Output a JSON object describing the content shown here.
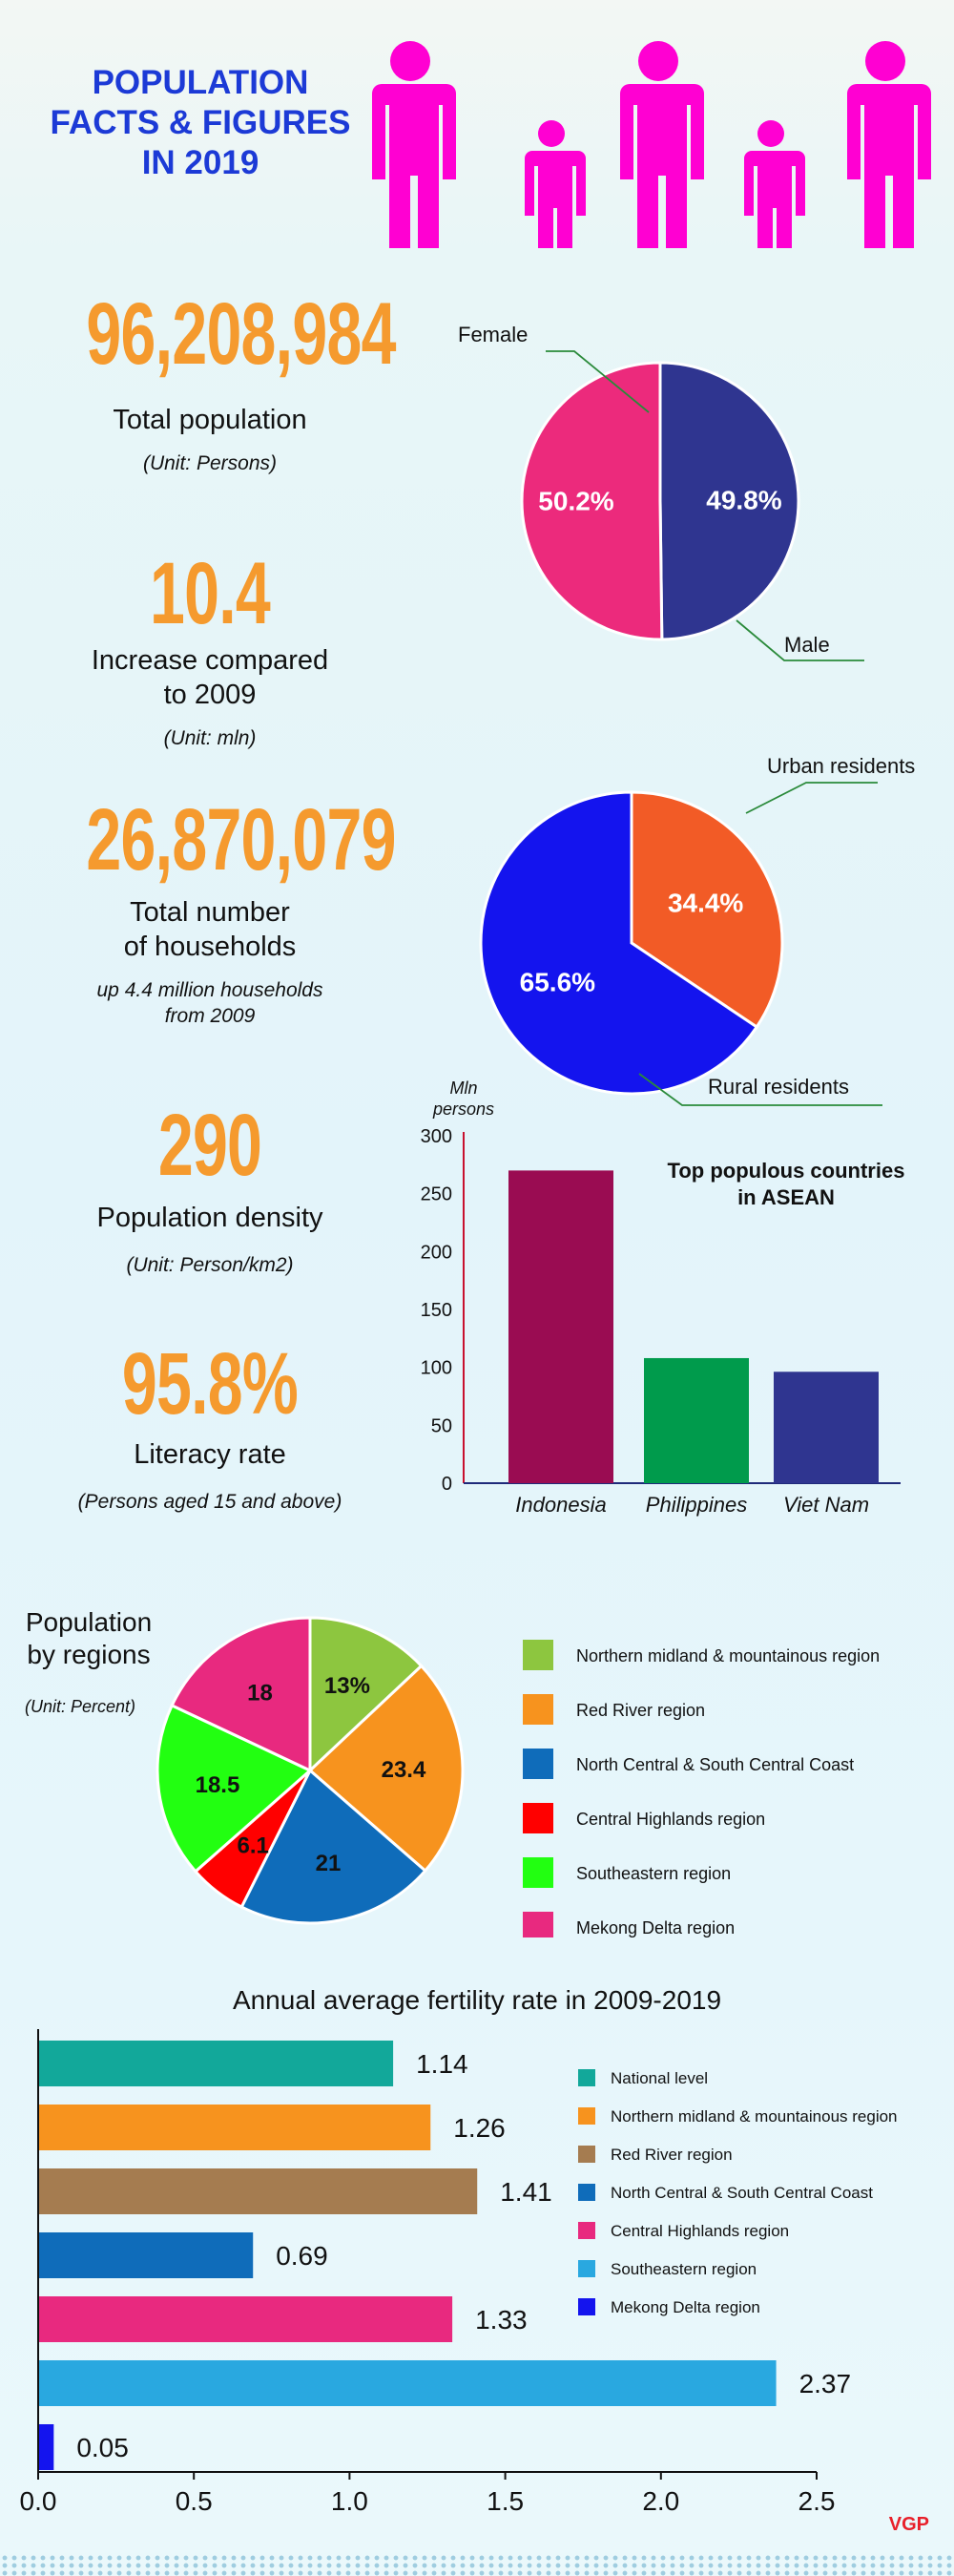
{
  "header": {
    "title_lines": [
      "POPULATION",
      "FACTS & FIGURES",
      "IN 2019"
    ],
    "icon": "family-figures-icon",
    "colors": {
      "title": "#1c3ad6",
      "figures": "#ff00d2"
    }
  },
  "stats": [
    {
      "value": "96,208,984",
      "label": [
        "Total population"
      ],
      "note": [
        "(Unit: Persons)"
      ]
    },
    {
      "value": "10.4",
      "label": [
        "Increase compared",
        "to 2009"
      ],
      "note": [
        "(Unit: mln)"
      ]
    },
    {
      "value": "26,870,079",
      "label": [
        "Total number",
        "of households"
      ],
      "note": [
        "up 4.4 million households",
        "from 2009"
      ]
    },
    {
      "value": "290",
      "label": [
        "Population density"
      ],
      "note": [
        "(Unit: Person/km2)"
      ]
    },
    {
      "value": "95.8%",
      "label": [
        "Literacy rate"
      ],
      "note": [
        "(Persons aged 15 and above)"
      ]
    }
  ],
  "chart_data": [
    {
      "type": "pie",
      "categories": [
        "Female",
        "Male"
      ],
      "values": [
        50.2,
        49.8
      ],
      "labels": [
        "50.2%",
        "49.8%"
      ],
      "colors": [
        "#ec2a7c",
        "#2f3590"
      ]
    },
    {
      "type": "pie",
      "categories": [
        "Urban residents",
        "Rural residents"
      ],
      "values": [
        34.4,
        65.6
      ],
      "labels": [
        "34.4%",
        "65.6%"
      ],
      "colors": [
        "#f25b26",
        "#1414ee"
      ]
    },
    {
      "type": "bar",
      "title": "Top populous countries\nin ASEAN",
      "ylabel": "Mln\npersons",
      "categories": [
        "Indonesia",
        "Philippines",
        "Viet Nam"
      ],
      "values": [
        270,
        108,
        96.2
      ],
      "colors": [
        "#9a0c52",
        "#009b4c",
        "#2f3590"
      ],
      "ylim": [
        0,
        300
      ],
      "yticks": [
        0,
        50,
        100,
        150,
        200,
        250,
        300
      ]
    },
    {
      "type": "pie",
      "title": "Population\nby regions",
      "subtitle": "(Unit: Percent)",
      "categories": [
        "Northern midland & mountainous region",
        "Red River region",
        "North Central & South Central Coast",
        "Central Highlands region",
        "Southeastern region",
        "Mekong Delta region"
      ],
      "values": [
        13,
        23.4,
        21,
        6.1,
        18.5,
        18
      ],
      "labels": [
        "13%",
        "23.4",
        "21",
        "6.1",
        "18.5",
        "18"
      ],
      "colors": [
        "#8dc63f",
        "#f7931e",
        "#0f6cba",
        "#ff0000",
        "#22ff11",
        "#e8297f"
      ],
      "legend": "right"
    },
    {
      "type": "bar",
      "orientation": "horizontal",
      "title": "Annual average fertility rate in 2009-2019",
      "categories": [
        "National level",
        "Northern midland & mountainous region",
        "Red River region",
        "North Central & South Central Coast",
        "Central Highlands region",
        "Southeastern region",
        "Mekong Delta region"
      ],
      "values": [
        1.14,
        1.26,
        1.41,
        0.69,
        1.33,
        2.37,
        0.05
      ],
      "labels": [
        "1.14",
        "1.26",
        "1.41",
        "0.69",
        "1.33",
        "2.37",
        "0.05"
      ],
      "colors": [
        "#12a89a",
        "#f7931e",
        "#a57c50",
        "#0f6cba",
        "#e8297f",
        "#29a8e0",
        "#1414ee"
      ],
      "xlim": [
        0,
        2.5
      ],
      "xticks": [
        "0.0",
        "0.5",
        "1.0",
        "1.5",
        "2.0",
        "2.5"
      ],
      "legend": "right"
    }
  ],
  "footer": {
    "logo": "VGP"
  }
}
